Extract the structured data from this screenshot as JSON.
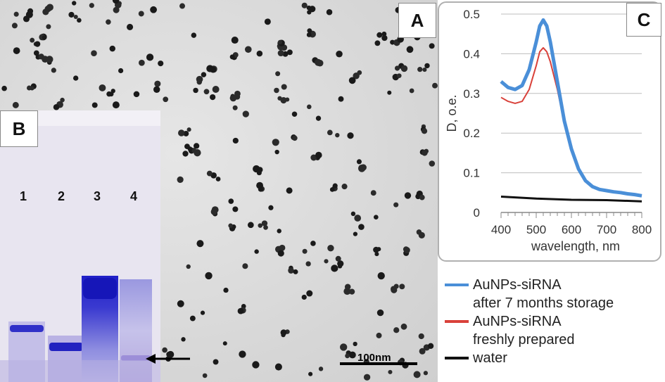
{
  "panels": {
    "a_label": "A",
    "b_label": "B",
    "c_label": "C"
  },
  "scale_bar": {
    "label": "100nm"
  },
  "gel": {
    "lanes": [
      "1",
      "2",
      "3",
      "4"
    ]
  },
  "chart_data": {
    "type": "line",
    "title": "",
    "xlabel": "wavelength, nm",
    "ylabel": "D, o.e.",
    "xlim": [
      400,
      800
    ],
    "ylim": [
      0,
      0.5
    ],
    "x_ticks": [
      "400",
      "500",
      "600",
      "700",
      "800"
    ],
    "y_ticks": [
      "0",
      "0.1",
      "0.2",
      "0.3",
      "0.4",
      "0.5"
    ],
    "grid": "horizontal",
    "series": [
      {
        "name": "AuNPs-siRNA after 7 months storage",
        "color": "#4a8fd8",
        "x": [
          400,
          420,
          440,
          460,
          480,
          500,
          510,
          520,
          530,
          540,
          560,
          580,
          600,
          620,
          640,
          660,
          680,
          700,
          720,
          740,
          760,
          780,
          800
        ],
        "y": [
          0.33,
          0.315,
          0.31,
          0.32,
          0.36,
          0.43,
          0.47,
          0.485,
          0.47,
          0.43,
          0.33,
          0.23,
          0.16,
          0.11,
          0.08,
          0.065,
          0.058,
          0.055,
          0.052,
          0.05,
          0.047,
          0.045,
          0.042
        ]
      },
      {
        "name": "AuNPs-siRNA freshly prepared",
        "color": "#d9413a",
        "x": [
          400,
          420,
          440,
          460,
          480,
          500,
          510,
          520,
          530,
          540,
          560,
          580,
          600,
          620,
          640,
          660,
          680,
          700,
          720,
          740,
          760,
          780,
          800
        ],
        "y": [
          0.29,
          0.28,
          0.275,
          0.28,
          0.31,
          0.37,
          0.405,
          0.415,
          0.405,
          0.38,
          0.31,
          0.225,
          0.155,
          0.11,
          0.08,
          0.065,
          0.058,
          0.055,
          0.052,
          0.05,
          0.047,
          0.045,
          0.042
        ]
      },
      {
        "name": "water",
        "color": "#111111",
        "x": [
          400,
          500,
          600,
          700,
          800
        ],
        "y": [
          0.04,
          0.035,
          0.032,
          0.031,
          0.028
        ]
      }
    ]
  },
  "legend": {
    "items": [
      {
        "line1": "AuNPs-siRNA",
        "line2": "after 7 months storage",
        "color": "#4a8fd8"
      },
      {
        "line1": "AuNPs-siRNA",
        "line2": "freshly prepared",
        "color": "#d9413a"
      },
      {
        "line1": "water",
        "line2": "",
        "color": "#111111"
      }
    ]
  }
}
